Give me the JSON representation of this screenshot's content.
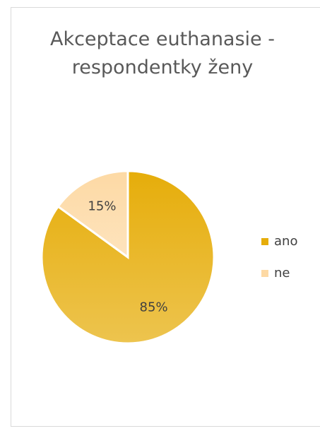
{
  "chart_data": {
    "type": "pie",
    "title": "Akceptace euthanasie - respondentky ženy",
    "categories": [
      "ano",
      "ne"
    ],
    "values": [
      85,
      15
    ],
    "value_labels": [
      "85%",
      "15%"
    ],
    "colors": [
      "#e6ad0a",
      "#fdd9a4"
    ],
    "legend": "right"
  }
}
